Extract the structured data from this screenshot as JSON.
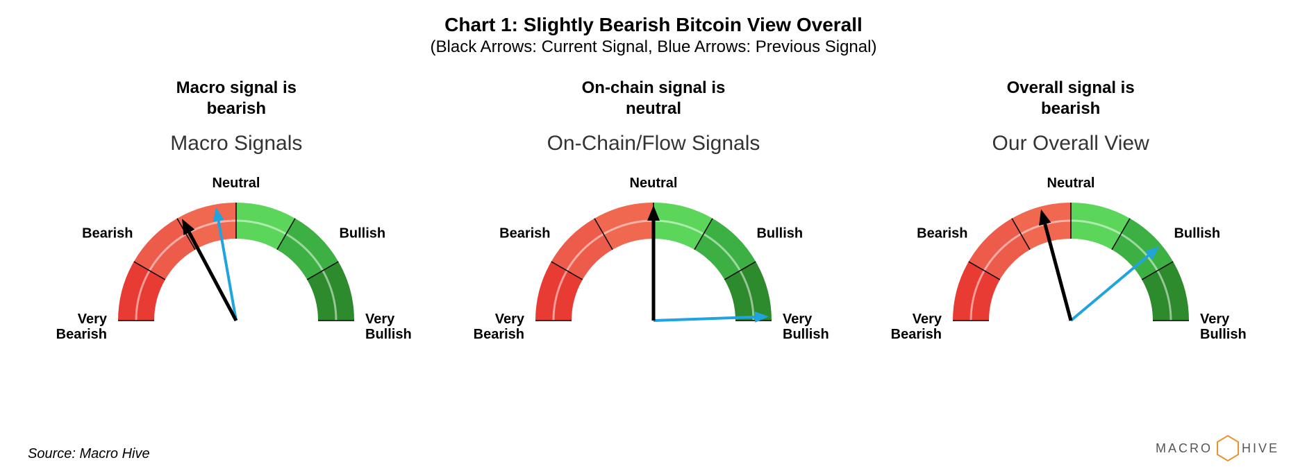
{
  "title": "Chart 1: Slightly Bearish Bitcoin View Overall",
  "subtitle": "(Black Arrows: Current Signal, Blue Arrows: Previous Signal)",
  "source": "Source: Macro Hive",
  "logo_text": "MACRO",
  "logo_text2": "HIVE",
  "colors": {
    "very_bearish": "#e73b33",
    "bearish": "#ed5b4b",
    "neutral_bearish": "#f0684f",
    "neutral_bullish": "#5bd65b",
    "bullish": "#3cb043",
    "very_bullish": "#2d8a2d",
    "current_arrow": "#000000",
    "previous_arrow": "#20a4e0",
    "separator": "#000000",
    "arc_inner_line": "#ffffff",
    "logo_orange": "#e8932e"
  },
  "label_font_size": 20,
  "label_font_weight": 700,
  "title_font_size": 28,
  "subtitle_font_size": 24,
  "signal_font_size": 24,
  "gauge_name_font_size": 30,
  "gauges": [
    {
      "signal_text": "Macro signal is\nbearish",
      "name": "Macro Signals",
      "current_angle_deg": 118,
      "previous_angle_deg": 100,
      "labels": {
        "very_bearish": "Very\nBearish",
        "bearish": "Bearish",
        "neutral": "Neutral",
        "bullish": "Bullish",
        "very_bullish": "Very\nBullish"
      }
    },
    {
      "signal_text": "On-chain signal is\nneutral",
      "name": "On-Chain/Flow Signals",
      "current_angle_deg": 90,
      "previous_angle_deg": 2,
      "labels": {
        "very_bearish": "Very\nBearish",
        "bearish": "Bearish",
        "neutral": "Neutral",
        "bullish": "Bullish",
        "very_bullish": "Very\nBullish"
      }
    },
    {
      "signal_text": "Overall signal is\nbearish",
      "name": "Our Overall View",
      "current_angle_deg": 105,
      "previous_angle_deg": 40,
      "labels": {
        "very_bearish": "Very\nBearish",
        "bearish": "Bearish",
        "neutral": "Neutral",
        "bullish": "Bullish",
        "very_bullish": "Very\nBullish"
      }
    }
  ],
  "arc_outer_radius": 170,
  "arc_inner_radius": 118,
  "segment_angles": [
    180,
    150,
    120,
    90,
    60,
    30,
    0
  ]
}
